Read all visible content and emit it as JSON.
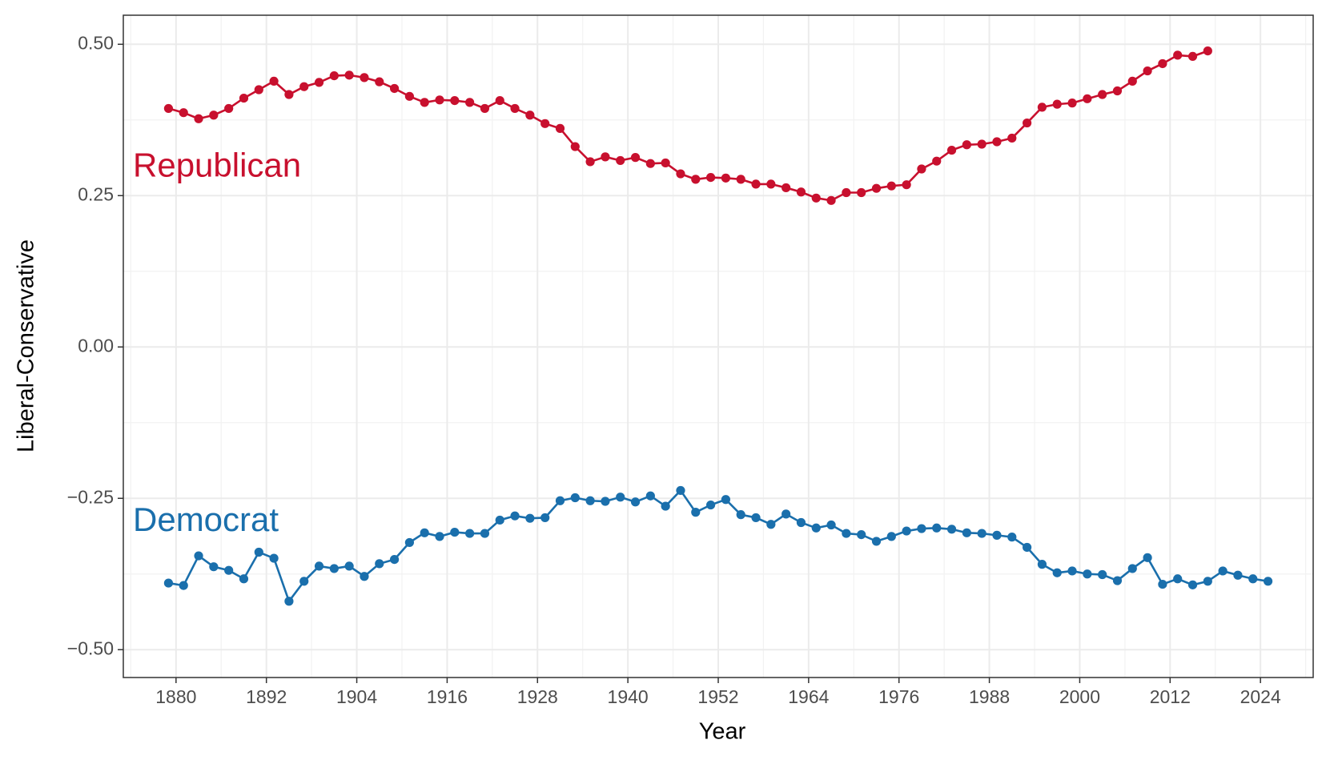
{
  "chart_data": {
    "type": "line",
    "xlabel": "Year",
    "ylabel": "Liberal-Conservative",
    "x": [
      1879,
      1881,
      1883,
      1885,
      1887,
      1889,
      1891,
      1893,
      1895,
      1897,
      1899,
      1901,
      1903,
      1905,
      1907,
      1909,
      1911,
      1913,
      1915,
      1917,
      1919,
      1921,
      1923,
      1925,
      1927,
      1929,
      1931,
      1933,
      1935,
      1937,
      1939,
      1941,
      1943,
      1945,
      1947,
      1949,
      1951,
      1953,
      1955,
      1957,
      1959,
      1961,
      1963,
      1965,
      1967,
      1969,
      1971,
      1973,
      1975,
      1977,
      1979,
      1981,
      1983,
      1985,
      1987,
      1989,
      1991,
      1993,
      1995,
      1997,
      1999,
      2001,
      2003,
      2005,
      2007,
      2009,
      2011,
      2013,
      2015,
      2017,
      2019,
      2021,
      2023,
      2025
    ],
    "series": [
      {
        "name": "Republican",
        "color": "#c8102e",
        "values": [
          0.394,
          0.387,
          0.377,
          0.383,
          0.394,
          0.411,
          0.425,
          0.439,
          0.417,
          0.43,
          0.437,
          0.448,
          0.449,
          0.445,
          0.438,
          0.427,
          0.414,
          0.404,
          0.408,
          0.407,
          0.404,
          0.394,
          0.407,
          0.394,
          0.383,
          0.369,
          0.361,
          0.331,
          0.306,
          0.314,
          0.308,
          0.313,
          0.303,
          0.304,
          0.286,
          0.277,
          0.28,
          0.279,
          0.277,
          0.269,
          0.269,
          0.263,
          0.256,
          0.246,
          0.242,
          0.255,
          0.255,
          0.262,
          0.266,
          0.268,
          0.294,
          0.307,
          0.325,
          0.334,
          0.335,
          0.339,
          0.345,
          0.37,
          0.396,
          0.401,
          0.403,
          0.41,
          0.417,
          0.423,
          0.439,
          0.456,
          0.468,
          0.482,
          0.48,
          0.489,
          null,
          null,
          null,
          null
        ]
      },
      {
        "name": "Democrat",
        "color": "#1a6fac",
        "values": [
          -0.39,
          -0.394,
          -0.345,
          -0.363,
          -0.369,
          -0.383,
          -0.339,
          -0.349,
          -0.42,
          -0.387,
          -0.362,
          -0.366,
          -0.362,
          -0.379,
          -0.358,
          -0.351,
          -0.323,
          -0.307,
          -0.313,
          -0.306,
          -0.308,
          -0.308,
          -0.286,
          -0.279,
          -0.283,
          -0.282,
          -0.254,
          -0.249,
          -0.254,
          -0.255,
          -0.248,
          -0.256,
          -0.246,
          -0.263,
          -0.237,
          -0.273,
          -0.261,
          -0.252,
          -0.277,
          -0.282,
          -0.293,
          -0.276,
          -0.29,
          -0.299,
          -0.294,
          -0.308,
          -0.31,
          -0.321,
          -0.313,
          -0.304,
          -0.3,
          -0.299,
          -0.301,
          -0.307,
          -0.308,
          -0.311,
          -0.314,
          -0.331,
          -0.359,
          -0.373,
          -0.37,
          -0.375,
          -0.376,
          -0.386,
          -0.366,
          -0.348,
          -0.392,
          -0.383,
          -0.393,
          -0.387,
          -0.37,
          -0.377,
          -0.383,
          -0.387
        ]
      }
    ],
    "xlim": [
      1873,
      2031
    ],
    "ylim": [
      -0.546,
      0.548
    ],
    "xticks": [
      1880,
      1892,
      1904,
      1916,
      1928,
      1940,
      1952,
      1964,
      1976,
      1988,
      2000,
      2012,
      2024
    ],
    "xminorticks": [
      1874,
      1886,
      1898,
      1910,
      1922,
      1934,
      1946,
      1958,
      1970,
      1982,
      1994,
      2006,
      2018,
      2030
    ],
    "yticks": [
      {
        "value": -0.5,
        "label": "−0.50"
      },
      {
        "value": -0.25,
        "label": "−0.25"
      },
      {
        "value": 0,
        "label": "0.00"
      },
      {
        "value": 0.25,
        "label": "0.25"
      },
      {
        "value": 0.5,
        "label": "0.50"
      }
    ],
    "yminorticks": [
      -0.375,
      -0.125,
      0.125,
      0.375
    ],
    "grid": true
  }
}
